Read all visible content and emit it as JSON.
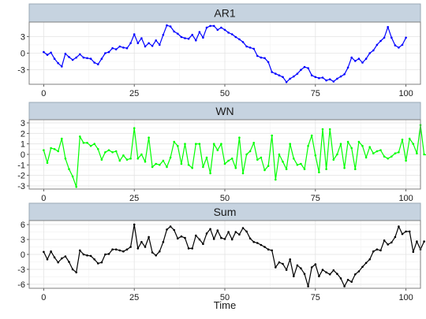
{
  "chart_data": {
    "type": "line",
    "xlabel": "Time",
    "grid": true,
    "panels": [
      {
        "title": "AR1",
        "color": "#0000ff",
        "xlim": [
          -4,
          104
        ],
        "ylim": [
          -5.6,
          5.6
        ],
        "xticks": [
          0,
          25,
          50,
          75,
          100
        ],
        "yticks": [
          -3,
          0,
          3
        ],
        "y": [
          0.2,
          -0.3,
          0.1,
          -1.0,
          -1.8,
          -2.4,
          -0.1,
          -0.7,
          -1.2,
          -0.8,
          -0.2,
          -0.8,
          -0.9,
          -1.0,
          -1.7,
          -2.0,
          -1.0,
          0.0,
          0.2,
          0.9,
          0.7,
          1.2,
          1.0,
          0.9,
          1.8,
          3.4,
          1.8,
          2.7,
          1.2,
          1.8,
          1.3,
          2.3,
          1.5,
          3.3,
          5.0,
          4.8,
          3.9,
          3.5,
          2.9,
          2.7,
          2.6,
          3.3,
          2.3,
          3.8,
          2.8,
          4.6,
          4.9,
          4.9,
          4.2,
          4.6,
          4.2,
          3.7,
          3.4,
          2.9,
          2.5,
          2.0,
          1.2,
          1.0,
          0.8,
          -0.5,
          -0.8,
          -0.9,
          -1.6,
          -3.4,
          -3.7,
          -4.0,
          -4.3,
          -5.2,
          -4.6,
          -4.2,
          -3.7,
          -3.0,
          -2.5,
          -2.7,
          -4.0,
          -4.3,
          -4.5,
          -4.4,
          -4.9,
          -4.7,
          -5.1,
          -4.6,
          -4.2,
          -3.8,
          -2.6,
          -0.8,
          -1.4,
          -1.0,
          -1.7,
          -1.0,
          0.0,
          0.5,
          1.5,
          2.2,
          2.8,
          4.7,
          2.8,
          1.4,
          1.0,
          1.5,
          2.8
        ]
      },
      {
        "title": "WN",
        "color": "#00ff00",
        "xlim": [
          -4,
          104
        ],
        "ylim": [
          -3.3,
          3.3
        ],
        "xticks": [
          0,
          25,
          50,
          75,
          100
        ],
        "yticks": [
          -3,
          -2,
          -1,
          0,
          1,
          2,
          3
        ],
        "y": [
          0.4,
          -0.8,
          0.6,
          0.5,
          0.3,
          1.5,
          -0.4,
          -1.4,
          -2.1,
          -3.1,
          1.7,
          1.1,
          1.1,
          0.8,
          1.0,
          0.5,
          -0.5,
          0.2,
          0.4,
          0.2,
          0.3,
          -0.6,
          -0.1,
          -0.5,
          -0.4,
          2.5,
          -0.4,
          0.0,
          -0.7,
          1.6,
          -1.2,
          -0.9,
          -1.0,
          -0.6,
          -1.2,
          -0.3,
          1.2,
          0.8,
          -0.9,
          1.0,
          -1.0,
          -1.3,
          1.0,
          1.0,
          -1.2,
          -0.3,
          -1.8,
          1.0,
          0.4,
          1.0,
          -0.9,
          -0.6,
          -0.4,
          -1.3,
          1.6,
          -1.8,
          0.0,
          0.3,
          1.1,
          -0.5,
          -0.3,
          -1.5,
          -1.1,
          1.8,
          -2.4,
          0.0,
          -0.7,
          -1.4,
          1.0,
          -0.4,
          -1.0,
          -0.9,
          -1.4,
          0.8,
          1.8,
          -0.1,
          -1.7,
          2.4,
          -1.4,
          2.4,
          -0.5,
          0.0,
          1.0,
          -1.3,
          1.2,
          0.6,
          -1.4,
          1.2,
          0.8,
          -0.3,
          0.7,
          0.1,
          0.3,
          0.4,
          -0.2,
          -0.4,
          -0.2,
          0.1,
          0.2,
          1.4,
          -0.6,
          1.5,
          1.0,
          0.1,
          2.8,
          0.0,
          -0.1,
          0.3,
          1.8,
          -0.4,
          2.2,
          2.2,
          -0.5,
          0.0
        ]
      },
      {
        "title": "Sum",
        "color": "#000000",
        "xlim": [
          -4,
          104
        ],
        "ylim": [
          -6.8,
          6.8
        ],
        "xticks": [
          0,
          25,
          50,
          75,
          100
        ],
        "yticks": [
          -6,
          -3,
          0,
          3,
          6
        ],
        "y": [
          0.5,
          -1.0,
          0.6,
          -0.6,
          -1.6,
          -0.8,
          -0.4,
          -1.5,
          -3.0,
          -3.6,
          0.8,
          0.0,
          -0.2,
          -0.3,
          -1.0,
          -1.8,
          -1.6,
          0.0,
          0.1,
          1.0,
          1.0,
          0.8,
          0.6,
          1.0,
          1.5,
          6.0,
          1.2,
          2.5,
          1.5,
          3.5,
          0.4,
          -0.2,
          0.6,
          2.5,
          5.0,
          5.6,
          4.9,
          3.2,
          3.6,
          3.3,
          1.2,
          1.2,
          3.8,
          3.0,
          2.1,
          4.2,
          5.1,
          3.1,
          4.8,
          3.3,
          3.1,
          4.5,
          3.0,
          4.5,
          4.0,
          5.3,
          4.6,
          3.2,
          2.5,
          2.3,
          1.9,
          1.5,
          1.0,
          0.8,
          -2.6,
          -1.6,
          -1.9,
          -3.1,
          -1.0,
          -4.4,
          -2.2,
          -2.8,
          -3.9,
          -6.4,
          -2.6,
          -2.0,
          -4.4,
          -3.1,
          -3.6,
          -4.0,
          -3.2,
          -3.9,
          -4.8,
          -6.4,
          -5.1,
          -5.5,
          -4.0,
          -3.4,
          -2.5,
          -1.7,
          -1.0,
          0.6,
          1.0,
          0.8,
          2.8,
          2.0,
          2.4,
          3.5,
          5.6,
          4.1,
          4.6,
          4.6,
          0.5,
          2.6,
          1.0,
          2.6
        ]
      }
    ]
  }
}
